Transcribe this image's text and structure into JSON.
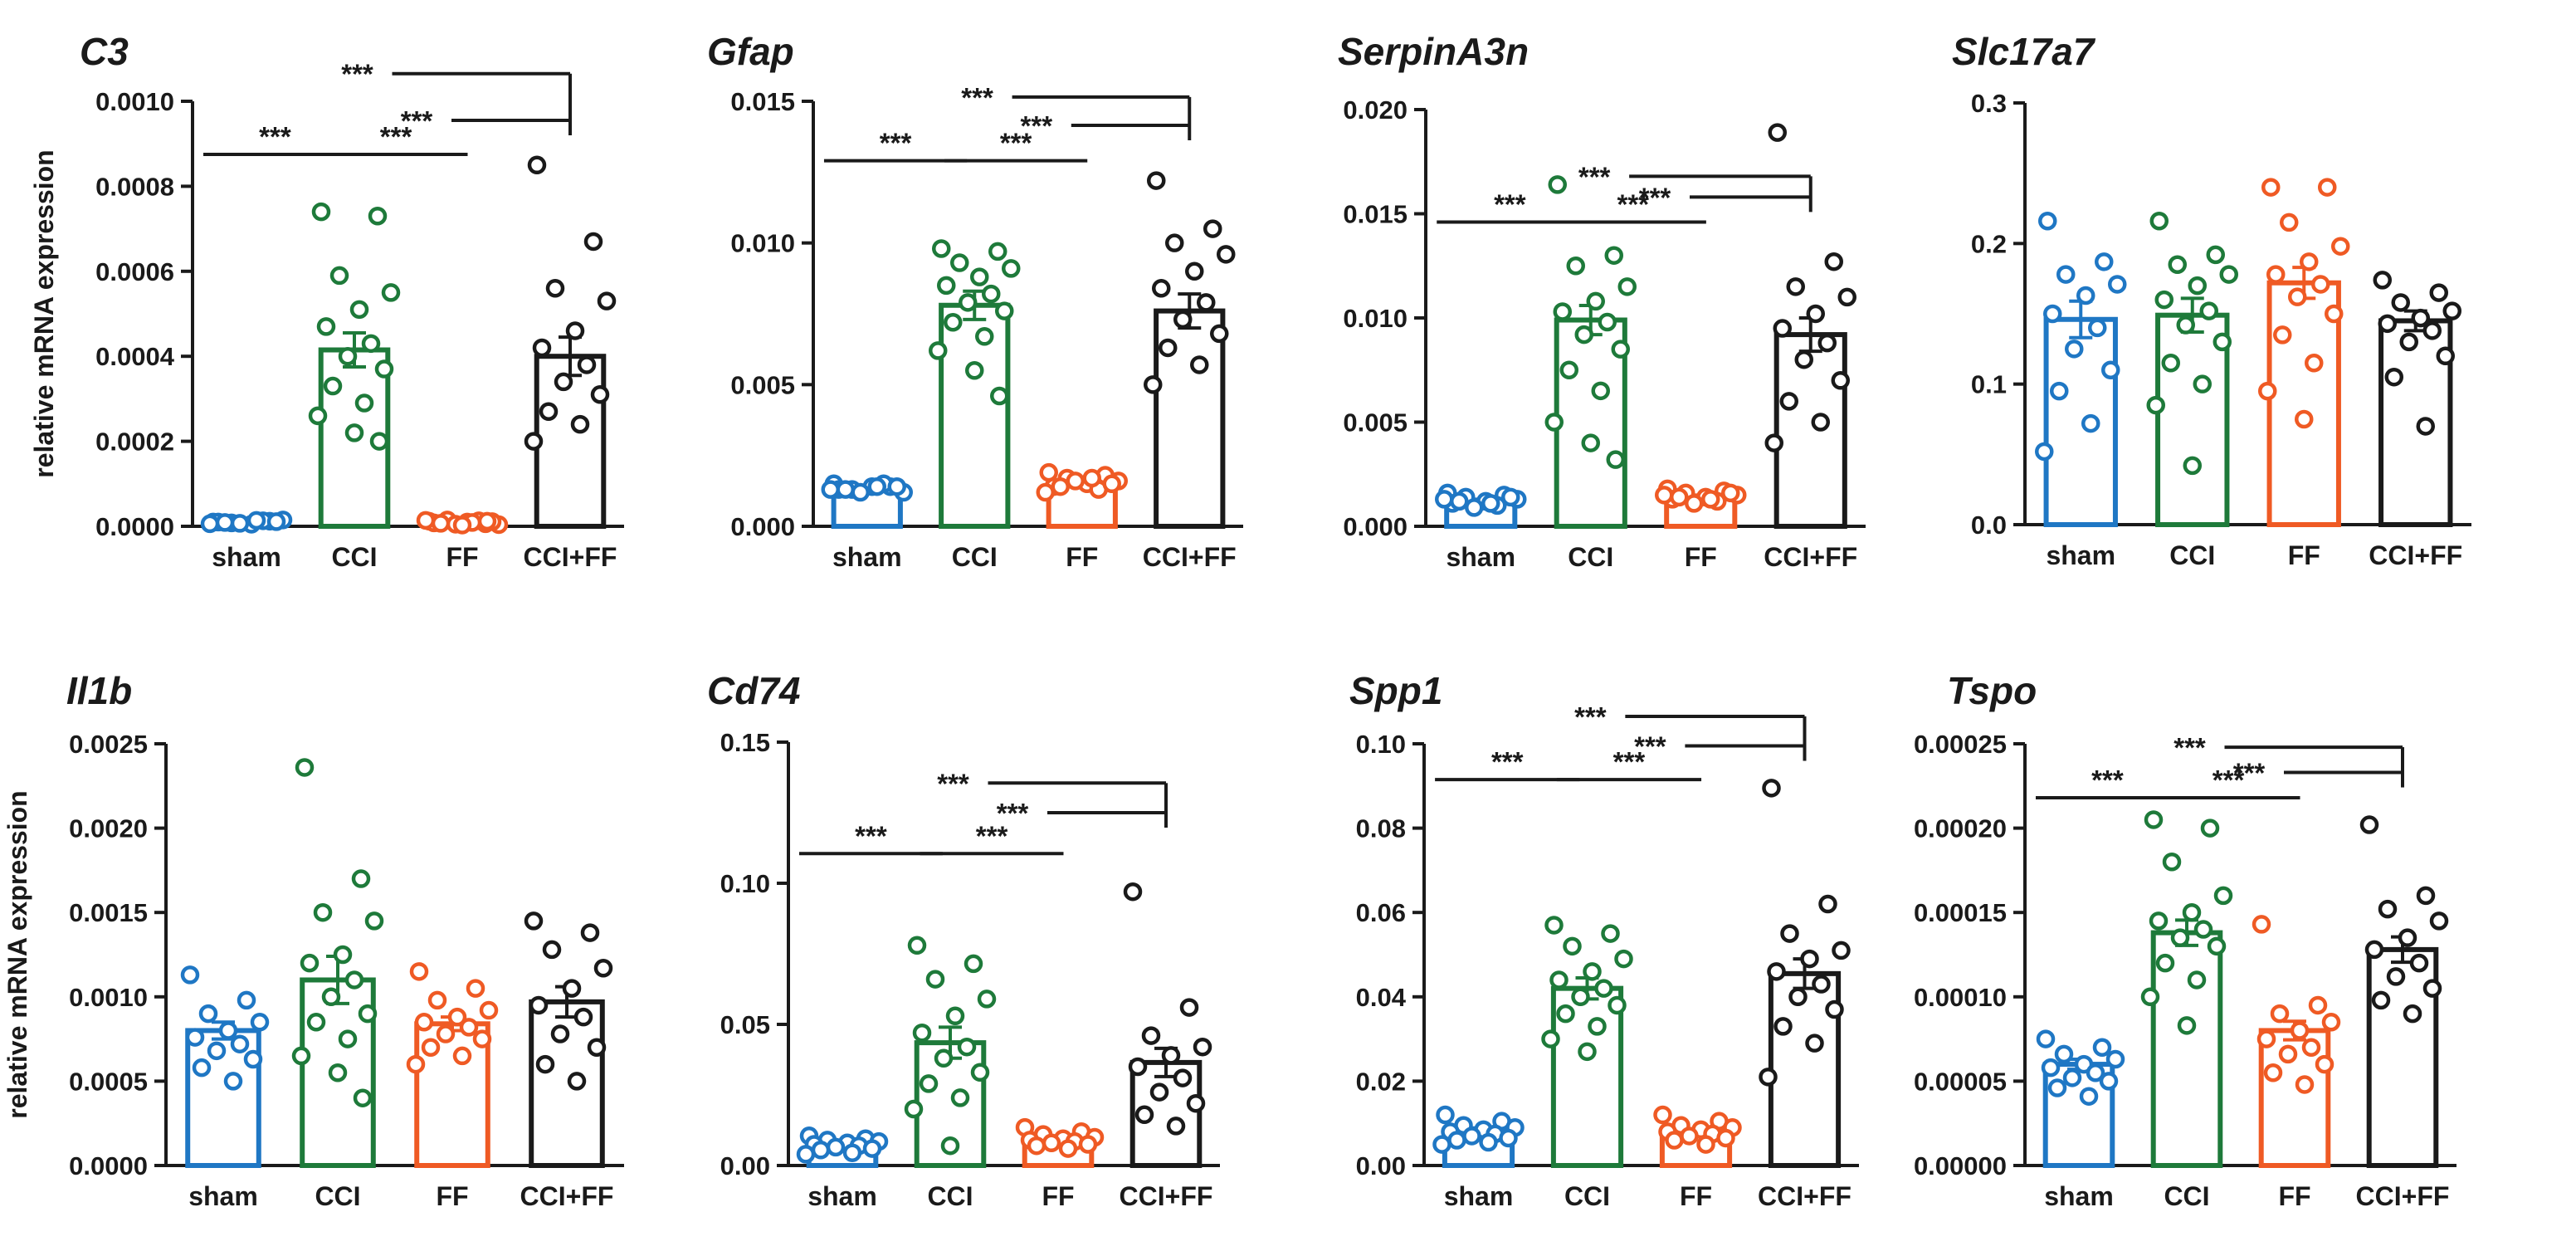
{
  "figure": {
    "ylabel": "relative mRNA expression"
  },
  "colors": {
    "sham": "#1f77c4",
    "CCI": "#1e7a3a",
    "FF": "#ef5a24",
    "CCI+FF": "#1a1a1a"
  },
  "chart_data": [
    {
      "type": "bar",
      "title": "C3",
      "ylabel": "relative mRNA expression",
      "categories": [
        "sham",
        "CCI",
        "FF",
        "CCI+FF"
      ],
      "ylim": [
        0,
        0.001
      ],
      "ticks": [
        "0.0000",
        "0.0002",
        "0.0004",
        "0.0006",
        "0.0008",
        "0.0010"
      ],
      "values": [
        1e-05,
        0.000415,
        8e-06,
        0.0004
      ],
      "sem": [
        2e-06,
        4e-05,
        2e-06,
        4.5e-05
      ],
      "points": [
        [
          1e-05,
          1.2e-05,
          8e-06,
          1.5e-05,
          5e-06,
          1e-05,
          1.3e-05,
          7e-06,
          1.1e-05,
          9e-06,
          1.4e-05,
          6e-06
        ],
        [
          0.00074,
          0.00073,
          0.00059,
          0.00055,
          0.00051,
          0.00047,
          0.00043,
          0.0004,
          0.00037,
          0.00033,
          0.00029,
          0.00026,
          0.00022,
          0.0002
        ],
        [
          1.2e-05,
          6e-06,
          1.5e-05,
          4e-06,
          1e-05,
          8e-06,
          1.3e-05,
          5e-06,
          1.1e-05,
          7e-06,
          9e-06,
          1.4e-05,
          3e-06,
          1.2e-05
        ],
        [
          0.00085,
          0.00067,
          0.00056,
          0.00053,
          0.00046,
          0.00042,
          0.00038,
          0.00034,
          0.00031,
          0.00027,
          0.00024,
          0.0002
        ]
      ],
      "significance": [
        {
          "from": 0,
          "to": 1,
          "level": 0.000875,
          "label": "***"
        },
        {
          "from": 1,
          "to": 2,
          "level": 0.000875,
          "label": "***"
        },
        {
          "from": 3,
          "to": 3,
          "level": 0.000955,
          "label": "***",
          "start_x": 0.55
        },
        {
          "from": 3,
          "to": 3,
          "level": 0.000955,
          "label": "***",
          "start_x": 0.0,
          "bracket_top": 0.001065
        }
      ]
    },
    {
      "type": "bar",
      "title": "Gfap",
      "ylabel": "",
      "categories": [
        "sham",
        "CCI",
        "FF",
        "CCI+FF"
      ],
      "ylim": [
        0,
        0.015
      ],
      "ticks": [
        "0.000",
        "0.005",
        "0.010",
        "0.015"
      ],
      "values": [
        0.00135,
        0.0078,
        0.00155,
        0.0076
      ],
      "sem": [
        5e-05,
        0.0005,
        0.0001,
        0.0006
      ],
      "points": [
        [
          0.0015,
          0.0014,
          0.0013,
          0.0012,
          0.0014,
          0.0013,
          0.0015,
          0.0012,
          0.0014,
          0.0013,
          0.0014,
          0.0013
        ],
        [
          0.0098,
          0.0097,
          0.0093,
          0.0091,
          0.0088,
          0.0085,
          0.0082,
          0.0079,
          0.0076,
          0.0072,
          0.0067,
          0.0062,
          0.0055,
          0.0046
        ],
        [
          0.0019,
          0.0018,
          0.0017,
          0.0016,
          0.0015,
          0.0014,
          0.0013,
          0.0016,
          0.0015,
          0.0014,
          0.0017,
          0.0012
        ],
        [
          0.0122,
          0.0105,
          0.01,
          0.0096,
          0.009,
          0.0084,
          0.0079,
          0.0073,
          0.0068,
          0.0063,
          0.0057,
          0.005
        ]
      ],
      "significance": [
        {
          "from": 0,
          "to": 1,
          "level": 0.0129,
          "label": "***"
        },
        {
          "from": 1,
          "to": 2,
          "level": 0.0129,
          "label": "***"
        },
        {
          "from": 3,
          "to": 3,
          "level": 0.01415,
          "label": "***",
          "start_x": 0.55
        },
        {
          "from": 3,
          "to": 3,
          "level": 0.01415,
          "label": "***",
          "start_x": 0.0,
          "bracket_top": 0.01515
        }
      ]
    },
    {
      "type": "bar",
      "title": "SerpinA3n",
      "ylabel": "",
      "categories": [
        "sham",
        "CCI",
        "FF",
        "CCI+FF"
      ],
      "ylim": [
        0,
        0.02
      ],
      "ticks": [
        "0.000",
        "0.005",
        "0.010",
        "0.015",
        "0.020"
      ],
      "values": [
        0.0012,
        0.0099,
        0.0014,
        0.0092
      ],
      "sem": [
        0.0001,
        0.0007,
        0.0001,
        0.0008
      ],
      "points": [
        [
          0.0016,
          0.0015,
          0.0014,
          0.0013,
          0.0012,
          0.0011,
          0.001,
          0.0009,
          0.0014,
          0.0012,
          0.0011,
          0.0013
        ],
        [
          0.0164,
          0.013,
          0.0125,
          0.0115,
          0.0108,
          0.0103,
          0.0098,
          0.0092,
          0.0085,
          0.0075,
          0.0065,
          0.005,
          0.004,
          0.0032
        ],
        [
          0.0018,
          0.0017,
          0.0016,
          0.0015,
          0.0014,
          0.0013,
          0.0012,
          0.0011,
          0.0016,
          0.0014,
          0.0013,
          0.0015
        ],
        [
          0.0189,
          0.0127,
          0.0115,
          0.011,
          0.0102,
          0.0095,
          0.0088,
          0.008,
          0.007,
          0.006,
          0.005,
          0.004
        ]
      ],
      "significance": [
        {
          "from": 0,
          "to": 1,
          "level": 0.0146,
          "label": "***"
        },
        {
          "from": 1,
          "to": 2,
          "level": 0.0146,
          "label": "***"
        },
        {
          "from": 3,
          "to": 3,
          "level": 0.0158,
          "label": "***",
          "start_x": 0.55
        },
        {
          "from": 3,
          "to": 3,
          "level": 0.0158,
          "label": "***",
          "start_x": 0.0,
          "bracket_top": 0.0168
        }
      ]
    },
    {
      "type": "bar",
      "title": "Slc17a7",
      "ylabel": "",
      "categories": [
        "sham",
        "CCI",
        "FF",
        "CCI+FF"
      ],
      "ylim": [
        0,
        0.3
      ],
      "ticks": [
        "0.0",
        "0.1",
        "0.2",
        "0.3"
      ],
      "values": [
        0.146,
        0.149,
        0.172,
        0.145
      ],
      "sem": [
        0.013,
        0.012,
        0.011,
        0.007
      ],
      "points": [
        [
          0.216,
          0.187,
          0.178,
          0.171,
          0.163,
          0.15,
          0.14,
          0.125,
          0.11,
          0.095,
          0.072,
          0.052
        ],
        [
          0.216,
          0.192,
          0.185,
          0.178,
          0.17,
          0.16,
          0.152,
          0.142,
          0.13,
          0.115,
          0.1,
          0.085,
          0.042
        ],
        [
          0.24,
          0.24,
          0.215,
          0.198,
          0.187,
          0.178,
          0.171,
          0.162,
          0.15,
          0.135,
          0.115,
          0.095,
          0.075
        ],
        [
          0.174,
          0.165,
          0.158,
          0.152,
          0.147,
          0.143,
          0.138,
          0.13,
          0.12,
          0.105,
          0.07
        ]
      ],
      "significance": []
    },
    {
      "type": "bar",
      "title": "Il1b",
      "ylabel": "relative mRNA expression",
      "categories": [
        "sham",
        "CCI",
        "FF",
        "CCI+FF"
      ],
      "ylim": [
        0,
        0.0025
      ],
      "ticks": [
        "0.0000",
        "0.0005",
        "0.0010",
        "0.0015",
        "0.0020",
        "0.0025"
      ],
      "values": [
        0.0008,
        0.0011,
        0.00084,
        0.00097
      ],
      "sem": [
        5e-05,
        0.00014,
        4e-05,
        9e-05
      ],
      "points": [
        [
          0.00113,
          0.00098,
          0.0009,
          0.00085,
          0.0008,
          0.00076,
          0.00072,
          0.00068,
          0.00063,
          0.00058,
          0.0005
        ],
        [
          0.00236,
          0.0017,
          0.0015,
          0.00145,
          0.00125,
          0.0012,
          0.0011,
          0.001,
          0.0009,
          0.00085,
          0.00075,
          0.00065,
          0.00055,
          0.0004
        ],
        [
          0.00115,
          0.00105,
          0.00098,
          0.00092,
          0.00088,
          0.00085,
          0.00082,
          0.00078,
          0.00075,
          0.0007,
          0.00065,
          0.0006
        ],
        [
          0.00145,
          0.00138,
          0.00128,
          0.00117,
          0.00105,
          0.00095,
          0.00088,
          0.00078,
          0.0007,
          0.0006,
          0.0005
        ]
      ],
      "significance": []
    },
    {
      "type": "bar",
      "title": "Cd74",
      "ylabel": "",
      "categories": [
        "sham",
        "CCI",
        "FF",
        "CCI+FF"
      ],
      "ylim": [
        0,
        0.15
      ],
      "ticks": [
        "0.00",
        "0.05",
        "0.10",
        "0.15"
      ],
      "values": [
        0.008,
        0.0435,
        0.0095,
        0.0365
      ],
      "sem": [
        0.0008,
        0.0055,
        0.0009,
        0.005
      ],
      "points": [
        [
          0.0105,
          0.0095,
          0.009,
          0.0085,
          0.008,
          0.0075,
          0.007,
          0.0065,
          0.006,
          0.0055,
          0.0045,
          0.004
        ],
        [
          0.078,
          0.0715,
          0.066,
          0.059,
          0.053,
          0.047,
          0.042,
          0.038,
          0.033,
          0.029,
          0.024,
          0.02,
          0.007
        ],
        [
          0.0135,
          0.012,
          0.011,
          0.01,
          0.0095,
          0.009,
          0.0085,
          0.008,
          0.0075,
          0.007,
          0.006
        ],
        [
          0.097,
          0.056,
          0.046,
          0.042,
          0.039,
          0.035,
          0.031,
          0.026,
          0.022,
          0.018,
          0.014
        ]
      ],
      "significance": [
        {
          "from": 0,
          "to": 1,
          "level": 0.1105,
          "label": "***"
        },
        {
          "from": 1,
          "to": 2,
          "level": 0.1105,
          "label": "***"
        },
        {
          "from": 3,
          "to": 3,
          "level": 0.125,
          "label": "***",
          "start_x": 0.55
        },
        {
          "from": 3,
          "to": 3,
          "level": 0.125,
          "label": "***",
          "start_x": 0.0,
          "bracket_top": 0.1355
        }
      ]
    },
    {
      "type": "bar",
      "title": "Spp1",
      "ylabel": "",
      "categories": [
        "sham",
        "CCI",
        "FF",
        "CCI+FF"
      ],
      "ylim": [
        0,
        0.1
      ],
      "ticks": [
        "0.00",
        "0.02",
        "0.04",
        "0.06",
        "0.08",
        "0.10"
      ],
      "values": [
        0.0083,
        0.042,
        0.008,
        0.0455
      ],
      "sem": [
        0.0006,
        0.0025,
        0.0006,
        0.0035
      ],
      "points": [
        [
          0.012,
          0.0105,
          0.0095,
          0.009,
          0.0085,
          0.008,
          0.0075,
          0.007,
          0.0065,
          0.006,
          0.0055,
          0.005
        ],
        [
          0.057,
          0.055,
          0.052,
          0.049,
          0.046,
          0.044,
          0.042,
          0.04,
          0.038,
          0.036,
          0.033,
          0.03,
          0.027
        ],
        [
          0.012,
          0.0105,
          0.0095,
          0.009,
          0.0085,
          0.008,
          0.0075,
          0.007,
          0.0065,
          0.006,
          0.005
        ],
        [
          0.0895,
          0.062,
          0.055,
          0.051,
          0.049,
          0.046,
          0.043,
          0.04,
          0.037,
          0.033,
          0.029,
          0.021
        ]
      ],
      "significance": [
        {
          "from": 0,
          "to": 1,
          "level": 0.0915,
          "label": "***"
        },
        {
          "from": 1,
          "to": 2,
          "level": 0.0915,
          "label": "***"
        },
        {
          "from": 3,
          "to": 3,
          "level": 0.0995,
          "label": "***",
          "start_x": 0.55
        },
        {
          "from": 3,
          "to": 3,
          "level": 0.0995,
          "label": "***",
          "start_x": 0.0,
          "bracket_top": 0.1065
        }
      ]
    },
    {
      "type": "bar",
      "title": "Tspo",
      "ylabel": "",
      "categories": [
        "sham",
        "CCI",
        "FF",
        "CCI+FF"
      ],
      "ylim": [
        0,
        0.00025
      ],
      "ticks": [
        "0.00000",
        "0.00005",
        "0.00010",
        "0.00015",
        "0.00020",
        "0.00025"
      ],
      "values": [
        6e-05,
        0.000138,
        8e-05,
        0.000128
      ],
      "sem": [
        3e-06,
        7.5e-06,
        5.5e-06,
        7.5e-06
      ],
      "points": [
        [
          7.5e-05,
          7e-05,
          6.6e-05,
          6.3e-05,
          6e-05,
          5.8e-05,
          5.5e-05,
          5.2e-05,
          5e-05,
          4.6e-05,
          4.1e-05
        ],
        [
          0.000205,
          0.0002,
          0.00018,
          0.00016,
          0.00015,
          0.000145,
          0.00014,
          0.000135,
          0.00013,
          0.00012,
          0.00011,
          0.0001,
          8.3e-05
        ],
        [
          0.000143,
          9.5e-05,
          9e-05,
          8.5e-05,
          8e-05,
          7.5e-05,
          7e-05,
          6.6e-05,
          6e-05,
          5.5e-05,
          4.8e-05
        ],
        [
          0.000202,
          0.00016,
          0.000152,
          0.000145,
          0.000135,
          0.000128,
          0.00012,
          0.000112,
          0.000105,
          9.8e-05,
          9e-05
        ]
      ],
      "significance": [
        {
          "from": 0,
          "to": 1,
          "level": 0.000218,
          "label": "***"
        },
        {
          "from": 1,
          "to": 2,
          "level": 0.000218,
          "label": "***"
        },
        {
          "from": 3,
          "to": 3,
          "level": 0.000233,
          "label": "***",
          "start_x": 0.55
        },
        {
          "from": 3,
          "to": 3,
          "level": 0.000233,
          "label": "***",
          "start_x": 0.0,
          "bracket_top": 0.000248
        }
      ]
    }
  ]
}
